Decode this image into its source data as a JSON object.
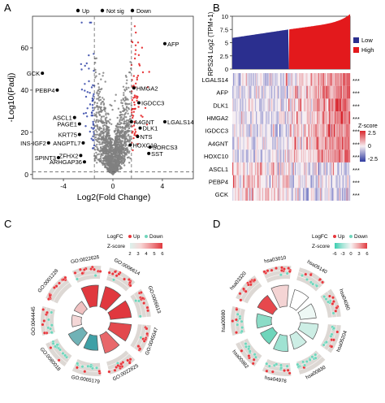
{
  "chart_data": [
    {
      "panel": "A",
      "type": "scatter",
      "title": "",
      "xlabel": "Log2(Fold Change)",
      "ylabel": "-Log10(Padj)",
      "xlim": [
        -6.5,
        6.5
      ],
      "ylim": [
        -2,
        75
      ],
      "xticks": [
        -4,
        0,
        4
      ],
      "yticks": [
        0,
        20,
        40,
        60
      ],
      "threshold_x": [
        -1.5,
        1.5
      ],
      "threshold_y": 1.3,
      "legend": {
        "placement": "top",
        "items": [
          "Up",
          "Not sig",
          "Down"
        ]
      },
      "series_colors": {
        "Up": "#e41a1c",
        "Not sig": "#808080",
        "Down": "#3345a8"
      },
      "labeled_points": [
        {
          "label": "AFP",
          "x": 4.2,
          "y": 62
        },
        {
          "label": "GCK",
          "x": -5.7,
          "y": 48
        },
        {
          "label": "PEBP4",
          "x": -4.5,
          "y": 40
        },
        {
          "label": "HMGA2",
          "x": 1.7,
          "y": 41
        },
        {
          "label": "IGDCC3",
          "x": 2.1,
          "y": 34
        },
        {
          "label": "ASCL1",
          "x": -3.1,
          "y": 27
        },
        {
          "label": "PAGE1",
          "x": -2.7,
          "y": 24
        },
        {
          "label": "LGALS14",
          "x": 4.2,
          "y": 25
        },
        {
          "label": "A4GNT",
          "x": 1.5,
          "y": 25
        },
        {
          "label": "DLK1",
          "x": 2.2,
          "y": 22
        },
        {
          "label": "KRT75",
          "x": -2.7,
          "y": 19
        },
        {
          "label": "INS-IGF2",
          "x": -5.2,
          "y": 15
        },
        {
          "label": "ANGPTL7",
          "x": -2.4,
          "y": 15
        },
        {
          "label": "HOXC10",
          "x": 1.4,
          "y": 14
        },
        {
          "label": "SORCS3",
          "x": 3.0,
          "y": 13
        },
        {
          "label": "SST",
          "x": 2.9,
          "y": 10
        },
        {
          "label": "SPINT3",
          "x": -4.4,
          "y": 8
        },
        {
          "label": "ZFHX2",
          "x": -2.6,
          "y": 9
        },
        {
          "label": "ARHGAP36",
          "x": -2.3,
          "y": 6
        },
        {
          "label": "NTS",
          "x": 2.0,
          "y": 18
        }
      ]
    },
    {
      "panel": "B",
      "type": "heatmap",
      "top_track": {
        "ylabel": "RPS24 Log2 (TPM+1)",
        "ylim": [
          0,
          10
        ],
        "yticks": [
          0,
          2.5,
          5,
          7.5,
          10
        ]
      },
      "legend": {
        "title": "",
        "placement": "right",
        "items": [
          {
            "name": "Low",
            "color": "#2b2f8f"
          },
          {
            "name": "High",
            "color": "#e3191c"
          }
        ]
      },
      "colorbar": {
        "title": "Z-score",
        "ticks": [
          2.5,
          0,
          -2.5
        ]
      },
      "rows": [
        "LGALS14",
        "AFP",
        "DLK1",
        "HMGA2",
        "IGDCC3",
        "A4GNT",
        "HOXC10",
        "ASCL1",
        "PEBP4",
        "GCK"
      ],
      "significance": "***"
    },
    {
      "panel": "C",
      "type": "other",
      "segments": [
        "GO:0001228",
        "GO:0022626",
        "GO:0006614",
        "GO:0006613",
        "GO:0045047",
        "GO:0022625",
        "GO:0005179",
        "GO:0080018",
        "GO:0044445"
      ],
      "legend": {
        "title": "LogFC",
        "items": [
          "Up",
          "Down"
        ]
      },
      "colorbar": {
        "title": "Z-score",
        "ticks": [
          2,
          3,
          4,
          5,
          6
        ]
      }
    },
    {
      "panel": "D",
      "type": "other",
      "segments": [
        "hsa03320",
        "hsa03010",
        "hsa05140",
        "hsa04080",
        "hsa05204",
        "hsa00830",
        "hsa04976",
        "hsa00982",
        "hsa00980"
      ],
      "legend": {
        "title": "LogFC",
        "items": [
          "Up",
          "Down"
        ]
      },
      "colorbar": {
        "title": "Z-score",
        "ticks": [
          -6,
          -3,
          0,
          3,
          6
        ]
      }
    }
  ],
  "panel_labels": [
    "A",
    "B",
    "C",
    "D"
  ]
}
